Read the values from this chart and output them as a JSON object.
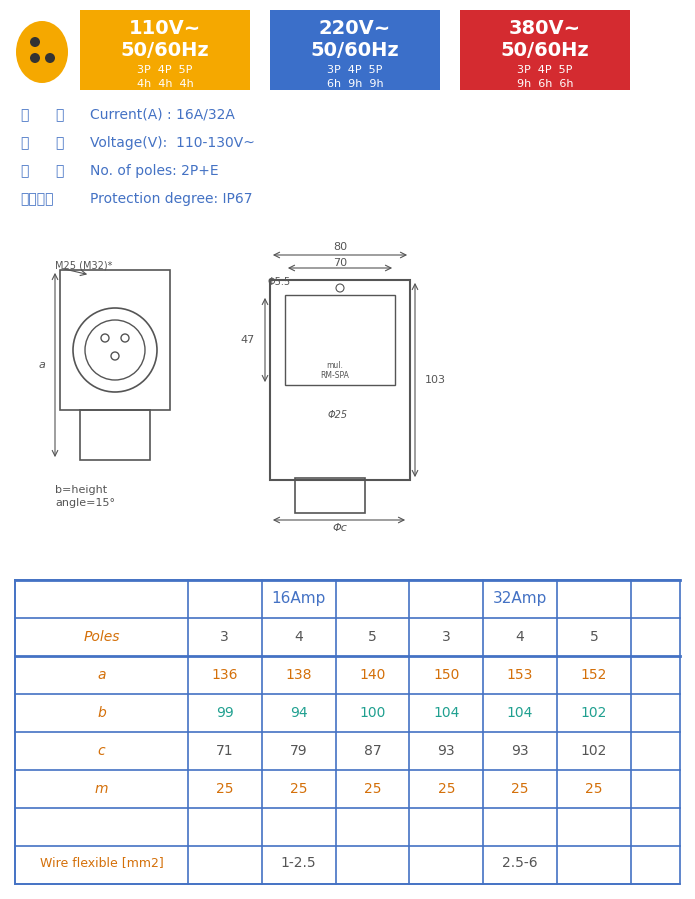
{
  "bg_color": "#ffffff",
  "header_boxes": [
    {
      "color": "#F5A800",
      "voltage": "110V~",
      "freq": "50/60Hz",
      "poles": "3P  4P  5P",
      "hours": "4h  4h  4h"
    },
    {
      "color": "#3B6FC9",
      "voltage": "220V~",
      "freq": "50/60Hz",
      "poles": "3P  4P  5P",
      "hours": "6h  9h  9h"
    },
    {
      "color": "#D42B30",
      "voltage": "380V~",
      "freq": "50/60Hz",
      "poles": "3P  4P  5P",
      "hours": "9h  6h  6h"
    }
  ],
  "specs": [
    {
      "zh1": "电",
      "zh2": "流",
      "en": "Current(A) : 16A/32A"
    },
    {
      "zh1": "电",
      "zh2": "压",
      "en": "Voltage(V):  110-130V~"
    },
    {
      "zh1": "极",
      "zh2": "数",
      "en": "No. of poles: 2P+E"
    },
    {
      "zh1": "防护等级",
      "zh2": "",
      "en": "Protection degree: IP67"
    }
  ],
  "table_color": "#4472C4",
  "table_data": {
    "col1_header": "",
    "amp_headers": [
      "16Amp",
      "32Amp"
    ],
    "sub_headers": [
      "3",
      "4",
      "5",
      "3",
      "4",
      "5"
    ],
    "rows": [
      {
        "label": "Poles",
        "values": [
          "3",
          "4",
          "5",
          "3",
          "4",
          "5"
        ],
        "label_color": "#D4700A",
        "val_color": "#333333"
      },
      {
        "label": "a",
        "values": [
          "136",
          "138",
          "140",
          "150",
          "153",
          "152"
        ],
        "label_color": "#D4700A",
        "val_color": "#D4700A"
      },
      {
        "label": "b",
        "values": [
          "99",
          "94",
          "100",
          "104",
          "104",
          "102"
        ],
        "label_color": "#D4700A",
        "val_color": "#20A090"
      },
      {
        "label": "c",
        "values": [
          "71",
          "79",
          "87",
          "93",
          "93",
          "102"
        ],
        "label_color": "#D4700A",
        "val_color": "#333333"
      },
      {
        "label": "m",
        "values": [
          "25",
          "25",
          "25",
          "25",
          "25",
          "25"
        ],
        "label_color": "#D4700A",
        "val_color": "#D4700A"
      },
      {
        "label": "Wire flexible [mm2]",
        "values": [
          "1-2.5",
          "2.5-6"
        ],
        "label_color": "#D4700A",
        "val_color": "#333333",
        "merged": true
      }
    ]
  }
}
